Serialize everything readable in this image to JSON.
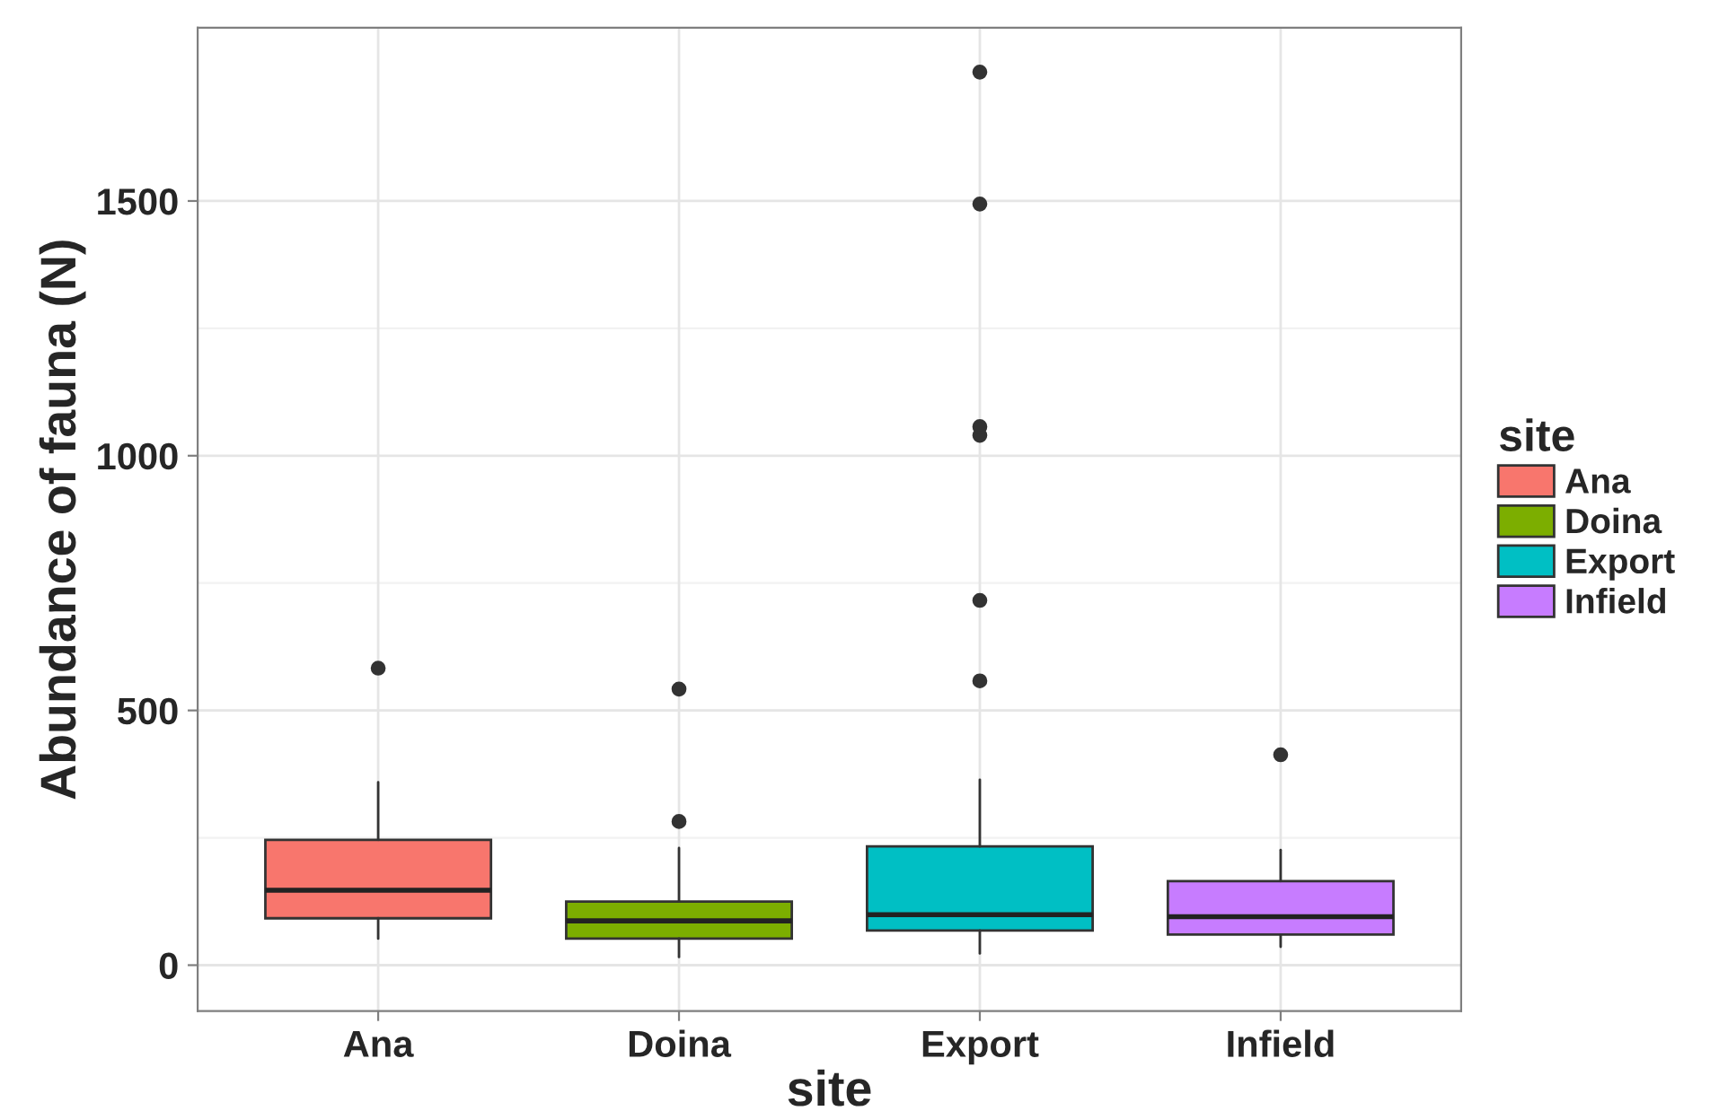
{
  "chart_data": {
    "type": "box",
    "xlabel": "site",
    "ylabel": "Abundance of fauna (N)",
    "legend_title": "site",
    "categories": [
      "Ana",
      "Doina",
      "Export",
      "Infield"
    ],
    "ylim": [
      -90,
      1840
    ],
    "yticks": [
      0,
      500,
      1000,
      1500
    ],
    "grid": true,
    "legend": "right",
    "series": [
      {
        "name": "Ana",
        "color": "#f8766d",
        "boxes": [
          {
            "low": 52,
            "q1": 92,
            "median": 147,
            "q3": 246,
            "high": 359,
            "outliers": [
              583
            ]
          },
          null,
          null,
          null
        ]
      },
      {
        "name": "Doina",
        "color": "#7cae00",
        "boxes": [
          null,
          {
            "low": 16,
            "q1": 52,
            "median": 87,
            "q3": 125,
            "high": 230,
            "outliers": [
              282,
              542
            ]
          },
          null,
          null
        ]
      },
      {
        "name": "Export",
        "color": "#00bfc4",
        "boxes": [
          null,
          null,
          {
            "low": 23,
            "q1": 68,
            "median": 99,
            "q3": 233,
            "high": 364,
            "outliers": [
              558,
              716,
              1040,
              1057,
              1494,
              1753
            ]
          },
          null
        ]
      },
      {
        "name": "Infield",
        "color": "#c77cff",
        "boxes": [
          null,
          null,
          null,
          {
            "low": 36,
            "q1": 60,
            "median": 95,
            "q3": 165,
            "high": 226,
            "outliers": [
              413
            ]
          }
        ]
      }
    ]
  }
}
